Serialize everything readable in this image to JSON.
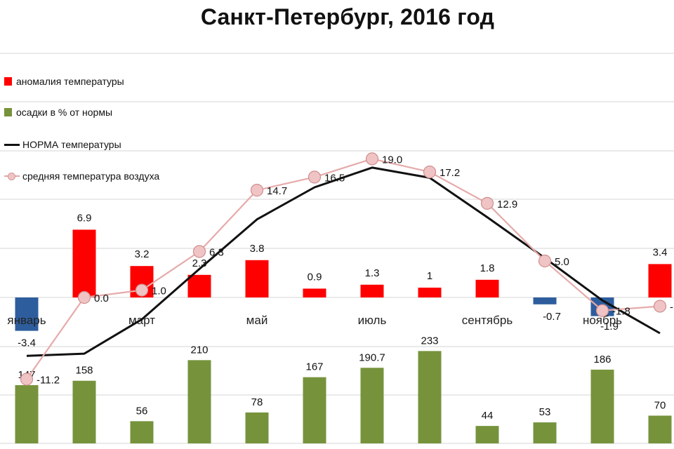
{
  "title": "Санкт-Петербург, 2016 год",
  "legend": [
    {
      "label": "аномалия температуры",
      "color": "#ff0000",
      "kind": "bar"
    },
    {
      "label": "осадки в % от нормы",
      "color": "#76933c",
      "kind": "bar"
    },
    {
      "label": "НОРМА температуры",
      "color": "#111111",
      "kind": "line"
    },
    {
      "label": "средняя температура воздуха",
      "color": "#e6aaaa",
      "kind": "line-marker"
    }
  ],
  "chart_data": {
    "type": "bar",
    "categories": [
      "январь",
      "",
      "март",
      "",
      "май",
      "",
      "июль",
      "",
      "сентябрь",
      "",
      "ноябрь",
      ""
    ],
    "temperature_anomaly": {
      "values": [
        -3.4,
        6.9,
        3.2,
        2.3,
        3.8,
        0.9,
        1.3,
        1,
        1.8,
        -0.7,
        -1.9,
        3.4
      ],
      "labels": [
        "-3.4",
        "6.9",
        "3.2",
        "2.3",
        "3.8",
        "0.9",
        "1.3",
        "1",
        "1.8",
        "-0.7",
        "-1.9",
        "3.4"
      ],
      "positive_color": "#ff0000",
      "negative_color": "#2e5d9e"
    },
    "precipitation_percent": {
      "values": [
        147,
        158,
        56,
        210,
        78,
        167,
        190.7,
        233,
        44,
        53,
        186,
        70
      ],
      "labels": [
        "147",
        "158",
        "56",
        "210",
        "78",
        "167",
        "190.7",
        "233",
        "44",
        "53",
        "186",
        "70"
      ],
      "color": "#76933c"
    },
    "average_temperature": {
      "values": [
        -11.2,
        0.0,
        1.0,
        6.3,
        14.7,
        16.5,
        19.0,
        17.2,
        12.9,
        5.0,
        -1.8,
        -1.2
      ],
      "labels": [
        "-11.2",
        "0.0",
        "1.0",
        "6.3",
        "14.7",
        "16.5",
        "19.0",
        "17.2",
        "12.9",
        "5.0",
        "-1.8",
        "-"
      ],
      "color": "#e6aaaa"
    },
    "norm_temperature": {
      "values": [
        -8.0,
        -7.7,
        -3.0,
        3.9,
        10.7,
        15.1,
        17.8,
        16.4,
        11.0,
        5.4,
        -0.4,
        -4.9
      ],
      "color": "#111111"
    },
    "ylim": [
      -15,
      25
    ],
    "grid": true
  }
}
